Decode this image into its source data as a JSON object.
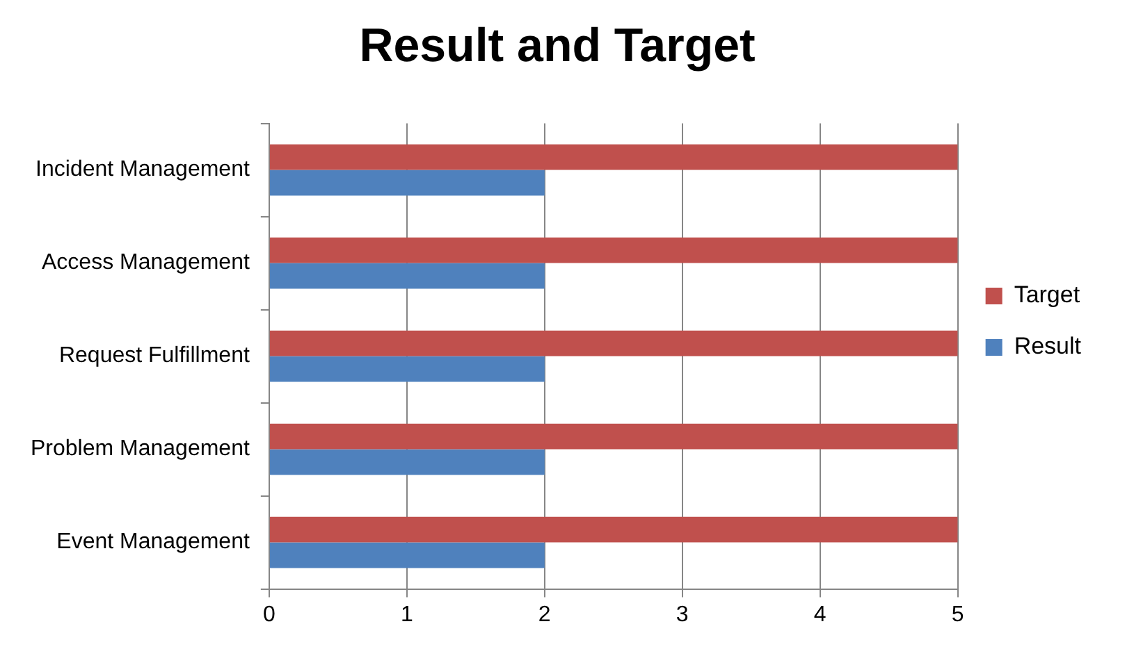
{
  "chart_data": {
    "type": "bar",
    "orientation": "horizontal",
    "title": "Result and Target",
    "categories": [
      "Incident Management",
      "Access Management",
      "Request Fulfillment",
      "Problem Management",
      "Event Management"
    ],
    "series": [
      {
        "name": "Target",
        "color": "#c0504d",
        "values": [
          5,
          5,
          5,
          5,
          5
        ]
      },
      {
        "name": "Result",
        "color": "#4f81bd",
        "values": [
          2,
          2,
          2,
          2,
          2
        ]
      }
    ],
    "xlim": [
      0,
      5
    ],
    "xticks": [
      0,
      1,
      2,
      3,
      4,
      5
    ],
    "grid": "x",
    "legend": "right"
  }
}
